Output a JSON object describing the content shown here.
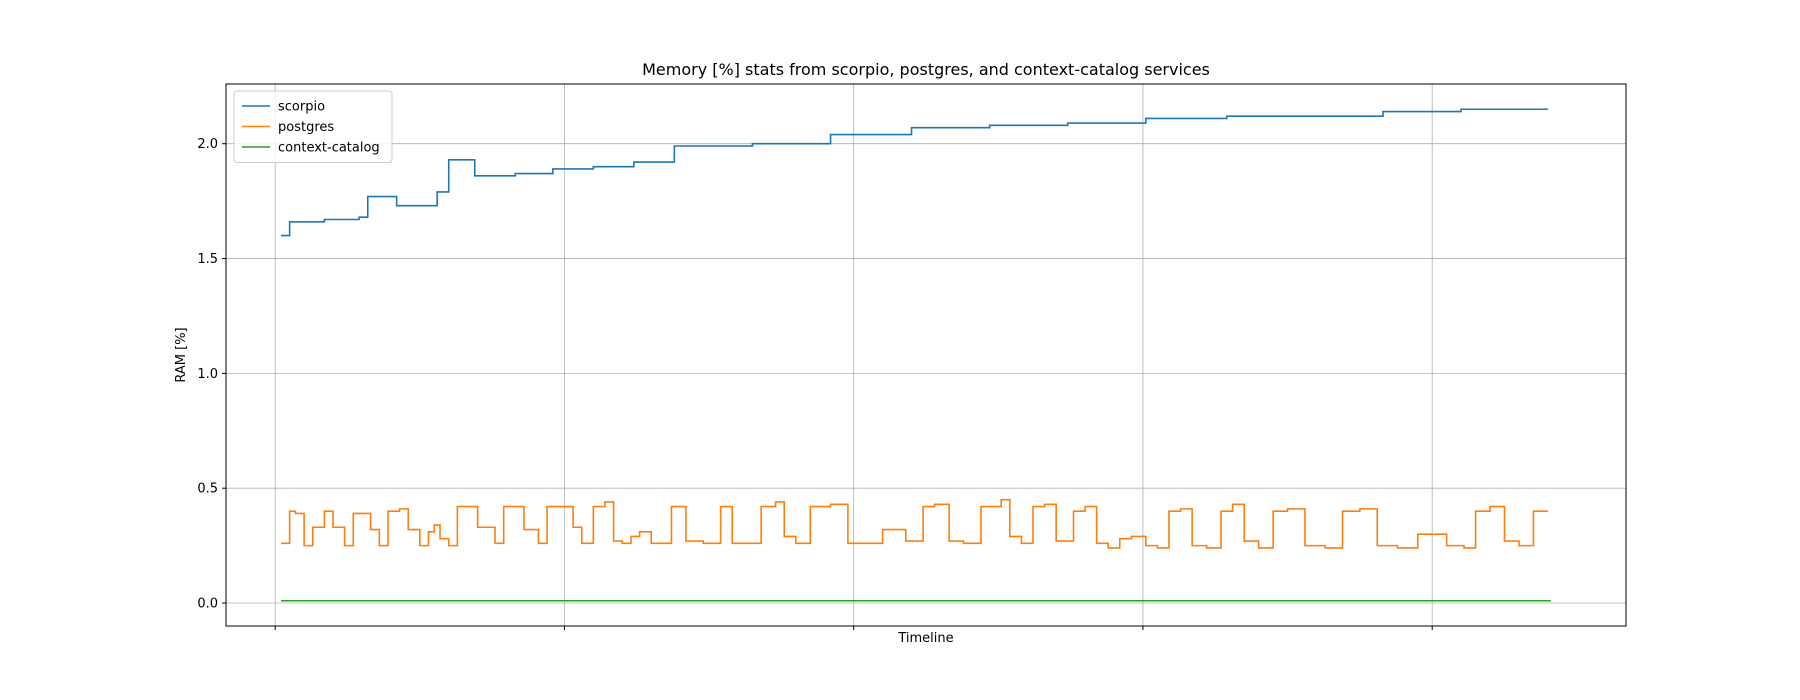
{
  "chart_data": {
    "type": "line",
    "title": "Memory [%] stats from scorpio, postgres, and context-catalog services",
    "xlabel": "Timeline",
    "ylabel": "RAM [%]",
    "xlim": [
      -0.17,
      4.67
    ],
    "ylim": [
      -0.1,
      2.26
    ],
    "yticks": [
      0.0,
      0.5,
      1.0,
      1.5,
      2.0
    ],
    "ytick_labels": [
      "0.0",
      "0.5",
      "1.0",
      "1.5",
      "2.0"
    ],
    "x_gridlines": [
      0,
      1,
      2,
      3,
      4
    ],
    "grid": true,
    "legend_position": "top-left",
    "step": true,
    "series": [
      {
        "name": "scorpio",
        "color": "#1f77b4",
        "x": [
          0.02,
          0.05,
          0.15,
          0.17,
          0.29,
          0.32,
          0.42,
          0.56,
          0.6,
          0.69,
          0.83,
          0.96,
          1.1,
          1.24,
          1.38,
          1.65,
          1.92,
          2.2,
          2.47,
          2.61,
          2.74,
          3.01,
          3.29,
          3.56,
          3.83,
          4.01,
          4.1,
          4.4
        ],
        "y": [
          1.6,
          1.66,
          1.66,
          1.67,
          1.68,
          1.77,
          1.73,
          1.79,
          1.93,
          1.86,
          1.87,
          1.89,
          1.9,
          1.92,
          1.99,
          2.0,
          2.04,
          2.07,
          2.08,
          2.08,
          2.09,
          2.11,
          2.12,
          2.12,
          2.14,
          2.14,
          2.15,
          2.15
        ]
      },
      {
        "name": "postgres",
        "color": "#ff7f0e",
        "x": [
          0.02,
          0.05,
          0.07,
          0.1,
          0.13,
          0.17,
          0.2,
          0.24,
          0.27,
          0.3,
          0.33,
          0.36,
          0.39,
          0.43,
          0.46,
          0.5,
          0.53,
          0.55,
          0.57,
          0.6,
          0.63,
          0.66,
          0.7,
          0.76,
          0.79,
          0.82,
          0.86,
          0.91,
          0.94,
          1.0,
          1.03,
          1.06,
          1.1,
          1.14,
          1.17,
          1.2,
          1.23,
          1.26,
          1.3,
          1.33,
          1.37,
          1.42,
          1.48,
          1.54,
          1.58,
          1.63,
          1.68,
          1.73,
          1.76,
          1.8,
          1.85,
          1.92,
          1.98,
          2.05,
          2.1,
          2.18,
          2.24,
          2.28,
          2.33,
          2.38,
          2.44,
          2.51,
          2.54,
          2.58,
          2.62,
          2.66,
          2.7,
          2.76,
          2.8,
          2.84,
          2.88,
          2.92,
          2.96,
          3.01,
          3.05,
          3.09,
          3.13,
          3.17,
          3.22,
          3.27,
          3.31,
          3.35,
          3.4,
          3.45,
          3.5,
          3.56,
          3.63,
          3.69,
          3.75,
          3.81,
          3.88,
          3.95,
          3.99,
          4.05,
          4.11,
          4.15,
          4.2,
          4.25,
          4.3,
          4.35,
          4.4
        ],
        "y": [
          0.26,
          0.4,
          0.39,
          0.25,
          0.33,
          0.4,
          0.33,
          0.25,
          0.39,
          0.39,
          0.32,
          0.25,
          0.4,
          0.41,
          0.32,
          0.25,
          0.31,
          0.34,
          0.28,
          0.25,
          0.42,
          0.42,
          0.33,
          0.26,
          0.42,
          0.42,
          0.32,
          0.26,
          0.42,
          0.42,
          0.33,
          0.26,
          0.42,
          0.44,
          0.27,
          0.26,
          0.29,
          0.31,
          0.26,
          0.26,
          0.42,
          0.27,
          0.26,
          0.42,
          0.26,
          0.26,
          0.42,
          0.44,
          0.29,
          0.26,
          0.42,
          0.43,
          0.26,
          0.26,
          0.32,
          0.27,
          0.42,
          0.43,
          0.27,
          0.26,
          0.42,
          0.45,
          0.29,
          0.26,
          0.42,
          0.43,
          0.27,
          0.4,
          0.42,
          0.26,
          0.24,
          0.28,
          0.29,
          0.25,
          0.24,
          0.4,
          0.41,
          0.25,
          0.24,
          0.4,
          0.43,
          0.27,
          0.24,
          0.4,
          0.41,
          0.25,
          0.24,
          0.4,
          0.41,
          0.25,
          0.24,
          0.3,
          0.3,
          0.25,
          0.24,
          0.4,
          0.42,
          0.27,
          0.25,
          0.4,
          0.4
        ]
      },
      {
        "name": "context-catalog",
        "color": "#2ca02c",
        "x": [
          0.02,
          4.41
        ],
        "y": [
          0.01,
          0.01
        ]
      }
    ]
  }
}
